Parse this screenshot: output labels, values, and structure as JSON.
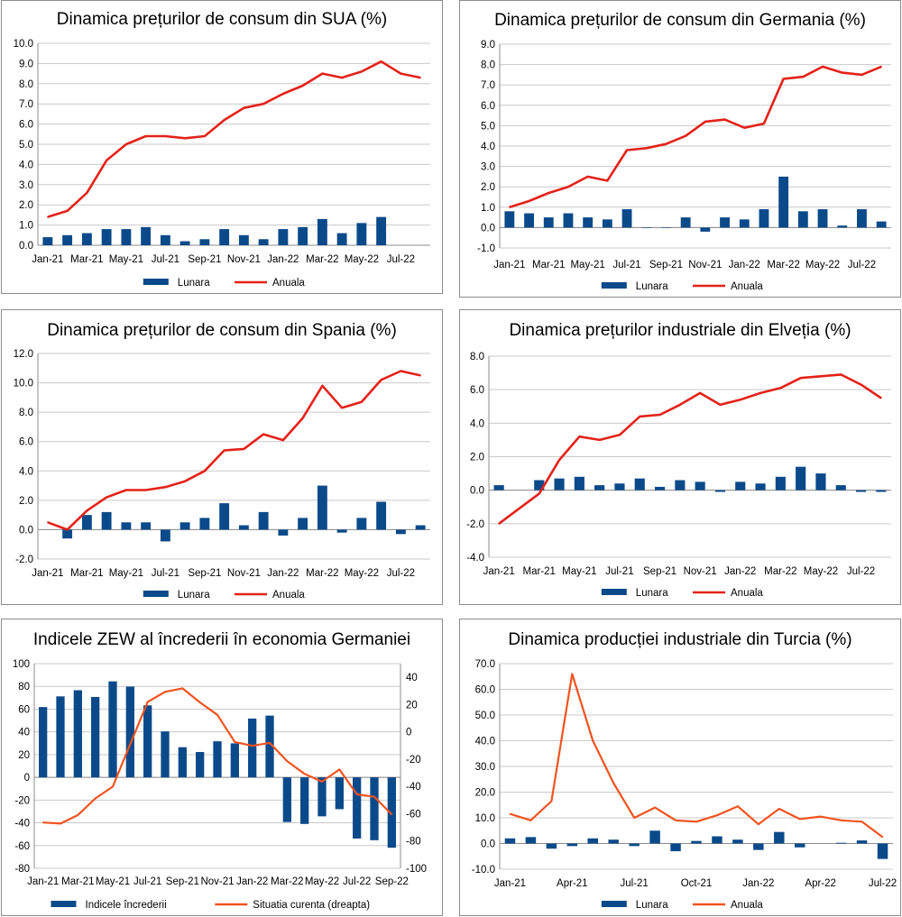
{
  "colors": {
    "bar": "#0b4a8a",
    "line_red": "#e32219",
    "line_orange": "#f0531f",
    "grid": "#c9c9c9",
    "axis": "#8c8c8c"
  },
  "chart_data": [
    {
      "type": "bar+line",
      "title": "Dinamica prețurilor de consum din SUA (%)",
      "categories": [
        "Jan-21",
        "Feb-21",
        "Mar-21",
        "Apr-21",
        "May-21",
        "Jun-21",
        "Jul-21",
        "Aug-21",
        "Sep-21",
        "Oct-21",
        "Nov-21",
        "Dec-21",
        "Jan-22",
        "Feb-22",
        "Mar-22",
        "Apr-22",
        "May-22",
        "Jun-22",
        "Jul-22",
        "Aug-22"
      ],
      "x_tick_labels": [
        "Jan-21",
        "Mar-21",
        "May-21",
        "Jul-21",
        "Sep-21",
        "Nov-21",
        "Jan-22",
        "Mar-22",
        "May-22",
        "Jul-22"
      ],
      "series": [
        {
          "name": "Lunara",
          "kind": "bar",
          "values": [
            0.4,
            0.5,
            0.6,
            0.8,
            0.8,
            0.9,
            0.5,
            0.2,
            0.3,
            0.8,
            0.5,
            0.3,
            0.8,
            0.9,
            1.3,
            0.6,
            1.1,
            1.4,
            null,
            null
          ]
        },
        {
          "name": "Anuala",
          "kind": "line",
          "values": [
            1.4,
            1.7,
            2.6,
            4.2,
            5.0,
            5.4,
            5.4,
            5.3,
            5.4,
            6.2,
            6.8,
            7.0,
            7.5,
            7.9,
            8.5,
            8.3,
            8.6,
            9.1,
            8.5,
            8.3
          ]
        }
      ],
      "ylim": [
        0,
        10
      ],
      "ystep": 1,
      "ydecimals": 1,
      "grid": true,
      "legend": "bottom"
    },
    {
      "type": "bar+line",
      "title": "Dinamica prețurilor de consum din Germania (%)",
      "categories": [
        "Jan-21",
        "Feb-21",
        "Mar-21",
        "Apr-21",
        "May-21",
        "Jun-21",
        "Jul-21",
        "Aug-21",
        "Sep-21",
        "Oct-21",
        "Nov-21",
        "Dec-21",
        "Jan-22",
        "Feb-22",
        "Mar-22",
        "Apr-22",
        "May-22",
        "Jun-22",
        "Jul-22",
        "Aug-22"
      ],
      "x_tick_labels": [
        "Jan-21",
        "Mar-21",
        "May-21",
        "Jul-21",
        "Sep-21",
        "Nov-21",
        "Jan-22",
        "Mar-22",
        "May-22",
        "Jul-22"
      ],
      "series": [
        {
          "name": "Lunara",
          "kind": "bar",
          "values": [
            0.8,
            0.7,
            0.5,
            0.7,
            0.5,
            0.4,
            0.9,
            0.0,
            0.0,
            0.5,
            -0.2,
            0.5,
            0.4,
            0.9,
            2.5,
            0.8,
            0.9,
            0.1,
            0.9,
            0.3
          ]
        },
        {
          "name": "Anuala",
          "kind": "line",
          "values": [
            1.0,
            1.3,
            1.7,
            2.0,
            2.5,
            2.3,
            3.8,
            3.9,
            4.1,
            4.5,
            5.2,
            5.3,
            4.9,
            5.1,
            7.3,
            7.4,
            7.9,
            7.6,
            7.5,
            7.9
          ]
        }
      ],
      "ylim": [
        -1,
        9
      ],
      "ystep": 1,
      "ydecimals": 1,
      "grid": true,
      "legend": "bottom"
    },
    {
      "type": "bar+line",
      "title": "Dinamica prețurilor de consum din Spania (%)",
      "categories": [
        "Jan-21",
        "Feb-21",
        "Mar-21",
        "Apr-21",
        "May-21",
        "Jun-21",
        "Jul-21",
        "Aug-21",
        "Sep-21",
        "Oct-21",
        "Nov-21",
        "Dec-21",
        "Jan-22",
        "Feb-22",
        "Mar-22",
        "Apr-22",
        "May-22",
        "Jun-22",
        "Jul-22",
        "Aug-22"
      ],
      "x_tick_labels": [
        "Jan-21",
        "Mar-21",
        "May-21",
        "Jul-21",
        "Sep-21",
        "Nov-21",
        "Jan-22",
        "Mar-22",
        "May-22",
        "Jul-22"
      ],
      "series": [
        {
          "name": "Lunara",
          "kind": "bar",
          "values": [
            null,
            -0.6,
            1.0,
            1.2,
            0.5,
            0.5,
            -0.8,
            0.5,
            0.8,
            1.8,
            0.3,
            1.2,
            -0.4,
            0.8,
            3.0,
            -0.2,
            0.8,
            1.9,
            -0.3,
            0.3
          ]
        },
        {
          "name": "Anuala",
          "kind": "line",
          "values": [
            0.5,
            0.0,
            1.3,
            2.2,
            2.7,
            2.7,
            2.9,
            3.3,
            4.0,
            5.4,
            5.5,
            6.5,
            6.1,
            7.6,
            9.8,
            8.3,
            8.7,
            10.2,
            10.8,
            10.5
          ]
        }
      ],
      "ylim": [
        -2,
        12
      ],
      "ystep": 2,
      "ydecimals": 1,
      "grid": true,
      "legend": "bottom"
    },
    {
      "type": "bar+line",
      "title": "Dinamica prețurilor industriale din Elveția (%)",
      "categories": [
        "Jan-21",
        "Feb-21",
        "Mar-21",
        "Apr-21",
        "May-21",
        "Jun-21",
        "Jul-21",
        "Aug-21",
        "Sep-21",
        "Oct-21",
        "Nov-21",
        "Dec-21",
        "Jan-22",
        "Feb-22",
        "Mar-22",
        "Apr-22",
        "May-22",
        "Jun-22",
        "Jul-22",
        "Aug-22"
      ],
      "x_tick_labels": [
        "Jan-21",
        "Mar-21",
        "May-21",
        "Jul-21",
        "Sep-21",
        "Nov-21",
        "Jan-22",
        "Mar-22",
        "May-22",
        "Jul-22"
      ],
      "series": [
        {
          "name": "Lunara",
          "kind": "bar",
          "values": [
            0.3,
            null,
            0.6,
            0.7,
            0.8,
            0.3,
            0.4,
            0.7,
            0.2,
            0.6,
            0.5,
            -0.1,
            0.5,
            0.4,
            0.8,
            1.4,
            1.0,
            0.3,
            -0.1,
            -0.1
          ]
        },
        {
          "name": "Anuala",
          "kind": "line",
          "values": [
            -2.0,
            -1.1,
            -0.2,
            1.8,
            3.2,
            3.0,
            3.3,
            4.4,
            4.5,
            5.1,
            5.8,
            5.1,
            5.4,
            5.8,
            6.1,
            6.7,
            6.8,
            6.9,
            6.3,
            5.5
          ]
        }
      ],
      "ylim": [
        -4,
        8
      ],
      "ystep": 2,
      "ydecimals": 1,
      "grid": true,
      "legend": "bottom"
    },
    {
      "type": "bar+line",
      "title": "Indicele ZEW al încrederii în economia Germaniei",
      "categories": [
        "Jan-21",
        "Feb-21",
        "Mar-21",
        "Apr-21",
        "May-21",
        "Jun-21",
        "Jul-21",
        "Aug-21",
        "Sep-21",
        "Oct-21",
        "Nov-21",
        "Dec-21",
        "Jan-22",
        "Feb-22",
        "Mar-22",
        "Apr-22",
        "May-22",
        "Jun-22",
        "Jul-22",
        "Aug-22",
        "Sep-22"
      ],
      "x_tick_labels": [
        "Jan-21",
        "Mar-21",
        "May-21",
        "Jul-21",
        "Sep-21",
        "Nov-21",
        "Jan-22",
        "Mar-22",
        "May-22",
        "Jul-22",
        "Sep-22"
      ],
      "series": [
        {
          "name": "Indicele încrederii",
          "kind": "bar",
          "axis": "left",
          "values": [
            61.8,
            71.2,
            76.6,
            70.7,
            84.4,
            79.8,
            63.3,
            40.4,
            26.5,
            22.3,
            31.7,
            29.9,
            51.7,
            54.3,
            -39.3,
            -41.0,
            -34.3,
            -28.0,
            -53.8,
            -55.3,
            -61.9
          ]
        },
        {
          "name": "Situatia curenta (dreapta)",
          "kind": "line",
          "axis": "right",
          "values": [
            -66.4,
            -67.2,
            -61.0,
            -48.8,
            -40.1,
            -9.1,
            21.9,
            29.3,
            31.9,
            21.6,
            12.5,
            -7.4,
            -10.2,
            -8.1,
            -21.4,
            -30.8,
            -36.5,
            -27.6,
            -45.8,
            -47.6,
            -60.5
          ]
        }
      ],
      "ylim": [
        -80,
        100
      ],
      "ystep": 20,
      "ydecimals": 0,
      "y2lim": [
        -100,
        50
      ],
      "y2step": 20,
      "y2ticks": [
        40,
        20,
        0,
        -20,
        -40,
        -60,
        -80,
        -100
      ],
      "grid": true,
      "legend": "bottom"
    },
    {
      "type": "bar+line",
      "title": "Dinamica producției industriale din Turcia (%)",
      "categories": [
        "Jan-21",
        "Feb-21",
        "Mar-21",
        "Apr-21",
        "May-21",
        "Jun-21",
        "Jul-21",
        "Aug-21",
        "Sep-21",
        "Oct-21",
        "Nov-21",
        "Dec-21",
        "Jan-22",
        "Feb-22",
        "Mar-22",
        "Apr-22",
        "May-22",
        "Jun-22",
        "Jul-22"
      ],
      "x_tick_labels": [
        "Jan-21",
        "Apr-21",
        "Jul-21",
        "Oct-21",
        "Jan-22",
        "Apr-22",
        "Jul-22"
      ],
      "x_tick_step": 3,
      "series": [
        {
          "name": "Lunara",
          "kind": "bar",
          "values": [
            2.0,
            2.5,
            -2.0,
            -1.0,
            2.0,
            1.5,
            -1.0,
            5.0,
            -3.0,
            1.0,
            2.8,
            1.5,
            -2.5,
            4.5,
            -1.5,
            null,
            0.3,
            1.2,
            -6.0
          ]
        },
        {
          "name": "Anuala",
          "kind": "line",
          "values": [
            11.5,
            9.0,
            16.5,
            66.0,
            40.0,
            23.5,
            10.0,
            14.0,
            9.0,
            8.5,
            11.0,
            14.5,
            7.5,
            13.5,
            9.5,
            10.5,
            9.0,
            8.5,
            2.5
          ]
        }
      ],
      "ylim": [
        -10,
        70
      ],
      "ystep": 10,
      "ydecimals": 1,
      "grid": true,
      "legend": "bottom"
    }
  ]
}
